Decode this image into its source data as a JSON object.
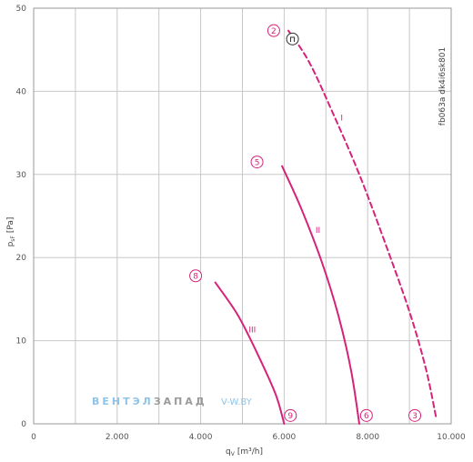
{
  "chart_data": {
    "type": "line",
    "xlabel": "q",
    "xlabel_sub": "V",
    "xlabel_unit": "[m³/h]",
    "ylabel": "p",
    "ylabel_sub": "sF",
    "ylabel_unit": "[Pa]",
    "xlim": [
      0,
      10000
    ],
    "ylim": [
      0,
      50
    ],
    "x_ticks": [
      0,
      1000,
      2000,
      3000,
      4000,
      5000,
      6000,
      7000,
      8000,
      9000,
      10000
    ],
    "x_tick_labels": [
      "0",
      "",
      "2.000",
      "",
      "4.000",
      "",
      "6.000",
      "",
      "8.000",
      "",
      "10.000"
    ],
    "y_ticks": [
      0,
      10,
      20,
      30,
      40,
      50
    ],
    "y_tick_labels": [
      "0",
      "10",
      "20",
      "30",
      "40",
      "50"
    ],
    "grid": true,
    "side_code": "fb063a dk4i6sk801",
    "series": [
      {
        "name": "I",
        "style": "dashed",
        "color": "#d6237a",
        "points": [
          [
            6100,
            47.3
          ],
          [
            6600,
            43.5
          ],
          [
            7200,
            37
          ],
          [
            7800,
            30
          ],
          [
            8400,
            22
          ],
          [
            9000,
            13.5
          ],
          [
            9400,
            6.5
          ],
          [
            9650,
            0.5
          ]
        ]
      },
      {
        "name": "II",
        "style": "solid",
        "color": "#d6237a",
        "points": [
          [
            5950,
            31
          ],
          [
            6400,
            26
          ],
          [
            6900,
            19.5
          ],
          [
            7300,
            13
          ],
          [
            7600,
            6.5
          ],
          [
            7800,
            0
          ]
        ]
      },
      {
        "name": "III",
        "style": "solid",
        "color": "#d6237a",
        "points": [
          [
            4350,
            17
          ],
          [
            4900,
            13
          ],
          [
            5400,
            8
          ],
          [
            5800,
            3.5
          ],
          [
            6000,
            0
          ]
        ]
      }
    ],
    "curve_labels": [
      {
        "text": "I",
        "x": 7350,
        "y": 36.5
      },
      {
        "text": "II",
        "x": 6750,
        "y": 23
      },
      {
        "text": "III",
        "x": 5150,
        "y": 11
      }
    ],
    "markers": [
      {
        "label": "2",
        "x": 5750,
        "y": 47.3
      },
      {
        "label": "⊓",
        "x": 6200,
        "y": 46.3,
        "style": "dark"
      },
      {
        "label": "5",
        "x": 5350,
        "y": 31.5
      },
      {
        "label": "8",
        "x": 3880,
        "y": 17.8
      },
      {
        "label": "9",
        "x": 6150,
        "y": 1.0
      },
      {
        "label": "6",
        "x": 7970,
        "y": 1.0
      },
      {
        "label": "3",
        "x": 9130,
        "y": 1.0
      }
    ]
  },
  "watermark": {
    "part1": "ВЕНТЭЛ",
    "part2": "ЗАПАД",
    "part3": "V-W.BY"
  }
}
